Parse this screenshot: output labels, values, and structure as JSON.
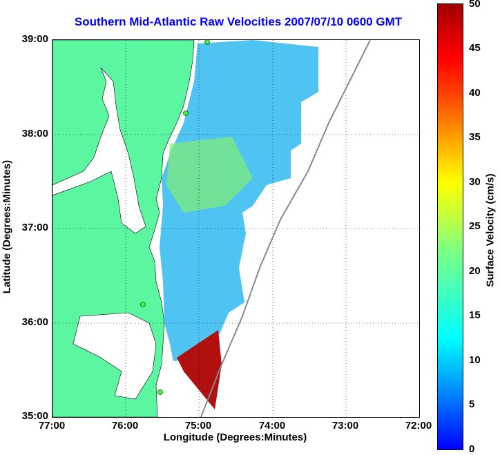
{
  "title": "Southern Mid-Atlantic Raw Velocities 2007/07/10 0600 GMT",
  "xlabel": "Longitude (Degrees:Minutes)",
  "ylabel": "Latitude (Degrees:Minutes)",
  "colorbar_label": "Surface Velocity (cm/s)",
  "x_ticks": [
    "77:00",
    "76:00",
    "75:00",
    "74:00",
    "73:00",
    "72:00"
  ],
  "y_ticks": [
    "39:00",
    "38:00",
    "37:00",
    "36:00",
    "35:00"
  ],
  "colorbar_ticks": [
    "50",
    "45",
    "40",
    "35",
    "30",
    "25",
    "20",
    "15",
    "10",
    "5",
    "0"
  ],
  "colors": {
    "land": "#5cf5a0",
    "title": "#0000ff",
    "grid": "#000000"
  }
}
